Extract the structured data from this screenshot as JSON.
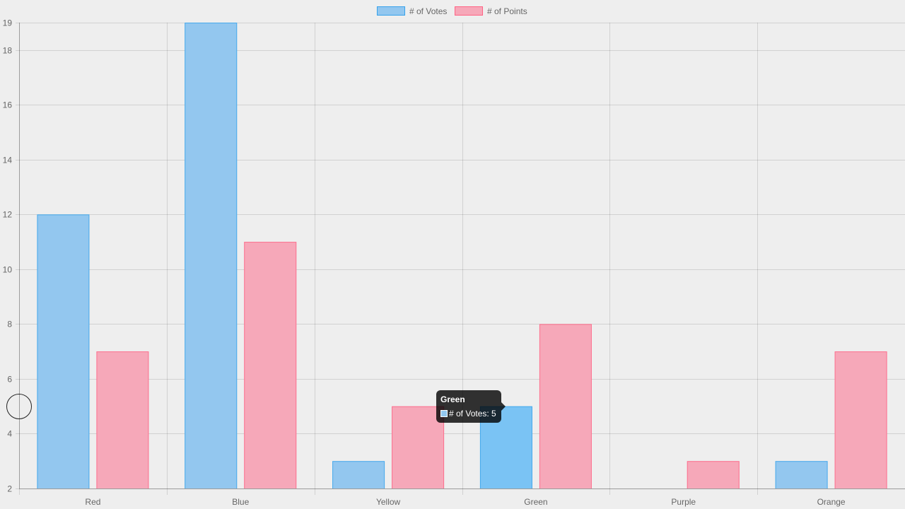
{
  "chart_data": {
    "type": "bar",
    "categories": [
      "Red",
      "Blue",
      "Yellow",
      "Green",
      "Purple",
      "Orange"
    ],
    "series": [
      {
        "name": "# of Votes",
        "values": [
          12,
          19,
          3,
          5,
          2,
          3
        ],
        "fill": "#93c7ef",
        "stroke": "#36a2eb"
      },
      {
        "name": "# of Points",
        "values": [
          7,
          11,
          5,
          8,
          3,
          7
        ],
        "fill": "#f6a8b9",
        "stroke": "#ff6384"
      }
    ],
    "ylim": [
      2,
      19
    ],
    "yticks": [
      2,
      4,
      6,
      8,
      10,
      12,
      14,
      16,
      18,
      19
    ],
    "grid": true,
    "legend_position": "top"
  },
  "tooltip": {
    "title": "Green",
    "label": "# of Votes: 5",
    "swatch_color": "#93c7ef"
  },
  "hover_fill": "#7ac3f4"
}
